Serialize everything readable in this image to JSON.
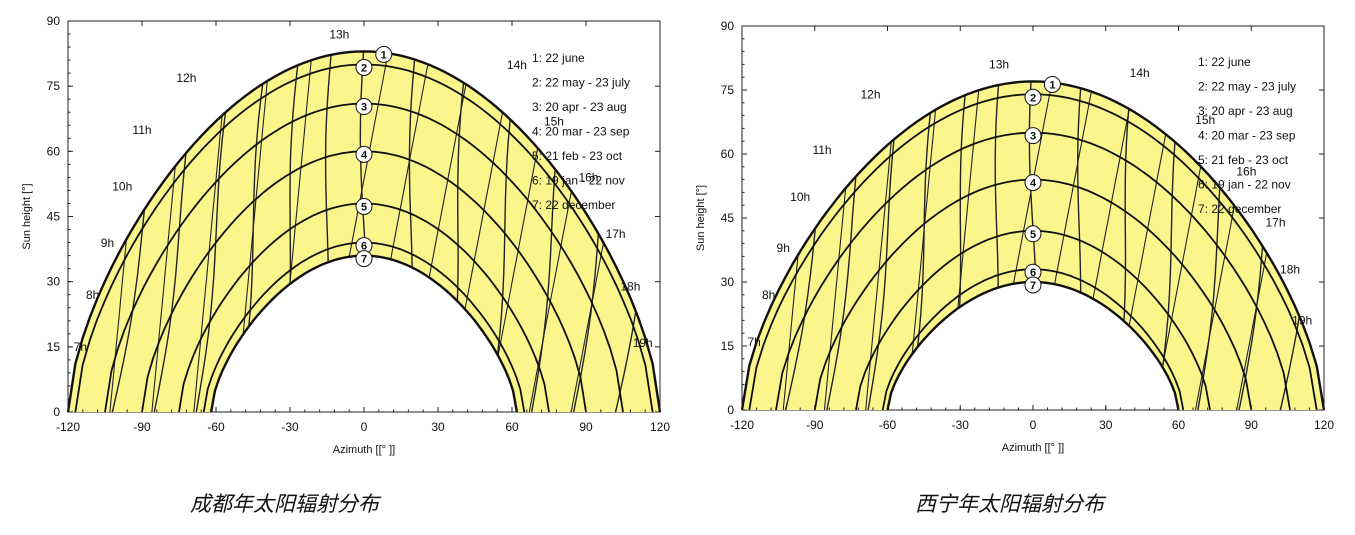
{
  "chart_data": [
    {
      "type": "line",
      "caption": "成都年太阳辐射分布",
      "xlabel": "Azimuth [[° ]]",
      "ylabel": "Sun height [°]",
      "xlim": [
        -120,
        120
      ],
      "ylim": [
        0,
        90
      ],
      "x_ticks": [
        "-120",
        "-90",
        "-60",
        "-30",
        "0",
        "30",
        "60",
        "90",
        "120"
      ],
      "y_ticks": [
        "0",
        "15",
        "30",
        "45",
        "60",
        "75",
        "90"
      ],
      "fill_color": "#fbf68c",
      "legend": [
        "1: 22 june",
        "2: 22 may - 23 july",
        "3: 20 apr - 23 aug",
        "4: 20 mar - 23 sep",
        "5: 21 feb - 23 oct",
        "6: 19 jan - 22 nov",
        "7: 22 december"
      ],
      "series": [
        {
          "name": "1",
          "azimuth_range": [
            -120,
            120
          ],
          "noon_height": 83
        },
        {
          "name": "2",
          "azimuth_range": [
            -117,
            117
          ],
          "noon_height": 80
        },
        {
          "name": "3",
          "azimuth_range": [
            -105,
            105
          ],
          "noon_height": 71
        },
        {
          "name": "4",
          "azimuth_range": [
            -90,
            90
          ],
          "noon_height": 60
        },
        {
          "name": "5",
          "azimuth_range": [
            -75,
            75
          ],
          "noon_height": 48
        },
        {
          "name": "6",
          "azimuth_range": [
            -65,
            65
          ],
          "noon_height": 39
        },
        {
          "name": "7",
          "azimuth_range": [
            -62,
            62
          ],
          "noon_height": 36
        }
      ],
      "hour_labels": [
        {
          "label": "7h",
          "az": -115,
          "h": 14
        },
        {
          "label": "8h",
          "az": -110,
          "h": 26
        },
        {
          "label": "9h",
          "az": -104,
          "h": 38
        },
        {
          "label": "10h",
          "az": -98,
          "h": 51
        },
        {
          "label": "11h",
          "az": -90,
          "h": 64
        },
        {
          "label": "12h",
          "az": -72,
          "h": 76
        },
        {
          "label": "13h",
          "az": -10,
          "h": 86
        },
        {
          "label": "14h",
          "az": 62,
          "h": 79
        },
        {
          "label": "15h",
          "az": 77,
          "h": 66
        },
        {
          "label": "16h",
          "az": 91,
          "h": 53
        },
        {
          "label": "17h",
          "az": 102,
          "h": 40
        },
        {
          "label": "18h",
          "az": 108,
          "h": 28
        },
        {
          "label": "19h",
          "az": 113,
          "h": 15
        }
      ]
    },
    {
      "type": "line",
      "caption": "西宁年太阳辐射分布",
      "xlabel": "Azimuth [[° ]]",
      "ylabel": "Sun height [°]",
      "xlim": [
        -120,
        120
      ],
      "ylim": [
        0,
        90
      ],
      "x_ticks": [
        "-120",
        "-90",
        "-60",
        "-30",
        "0",
        "30",
        "60",
        "90",
        "120"
      ],
      "y_ticks": [
        "0",
        "15",
        "30",
        "45",
        "60",
        "75",
        "90"
      ],
      "fill_color": "#fbf68c",
      "legend": [
        "1: 22 june",
        "2: 22 may - 23 july",
        "3: 20 apr - 23 aug",
        "4: 20 mar - 23 sep",
        "5: 21 feb - 23 oct",
        "6: 19 jan - 22 nov",
        "7: 22 december"
      ],
      "series": [
        {
          "name": "1",
          "azimuth_range": [
            -120,
            120
          ],
          "noon_height": 77
        },
        {
          "name": "2",
          "azimuth_range": [
            -117,
            117
          ],
          "noon_height": 74
        },
        {
          "name": "3",
          "azimuth_range": [
            -106,
            106
          ],
          "noon_height": 65
        },
        {
          "name": "4",
          "azimuth_range": [
            -90,
            90
          ],
          "noon_height": 54
        },
        {
          "name": "5",
          "azimuth_range": [
            -73,
            73
          ],
          "noon_height": 42
        },
        {
          "name": "6",
          "azimuth_range": [
            -62,
            62
          ],
          "noon_height": 33
        },
        {
          "name": "7",
          "azimuth_range": [
            -60,
            60
          ],
          "noon_height": 30
        }
      ],
      "hour_labels": [
        {
          "label": "7h",
          "az": -115,
          "h": 15
        },
        {
          "label": "8h",
          "az": -109,
          "h": 26
        },
        {
          "label": "9h",
          "az": -103,
          "h": 37
        },
        {
          "label": "10h",
          "az": -96,
          "h": 49
        },
        {
          "label": "11h",
          "az": -87,
          "h": 60
        },
        {
          "label": "12h",
          "az": -67,
          "h": 73
        },
        {
          "label": "13h",
          "az": -14,
          "h": 80
        },
        {
          "label": "14h",
          "az": 44,
          "h": 78
        },
        {
          "label": "15h",
          "az": 71,
          "h": 67
        },
        {
          "label": "16h",
          "az": 88,
          "h": 55
        },
        {
          "label": "17h",
          "az": 100,
          "h": 43
        },
        {
          "label": "18h",
          "az": 106,
          "h": 32
        },
        {
          "label": "19h",
          "az": 111,
          "h": 20
        }
      ]
    }
  ]
}
